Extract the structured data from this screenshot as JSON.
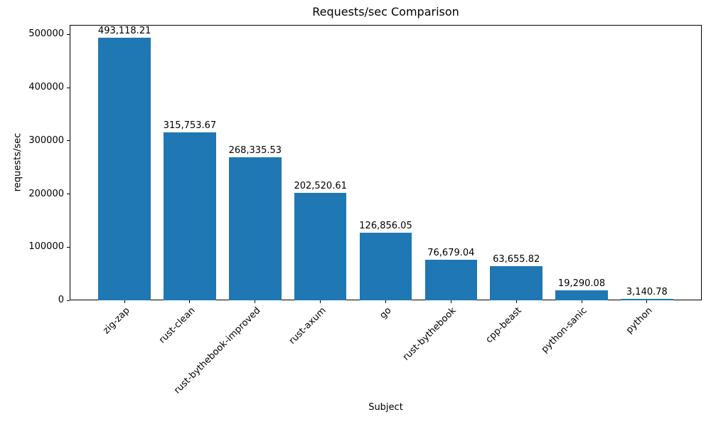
{
  "chart_data": {
    "type": "bar",
    "title": "Requests/sec Comparison",
    "xlabel": "Subject",
    "ylabel": "requests/sec",
    "categories": [
      "zig-zap",
      "rust-clean",
      "rust-bythebook-improved",
      "rust-axum",
      "go",
      "rust-bythebook",
      "cpp-beast",
      "python-sanic",
      "python"
    ],
    "values": [
      493118.21,
      315753.67,
      268335.53,
      202520.61,
      126856.05,
      76679.04,
      63655.82,
      19290.08,
      3140.78
    ],
    "value_labels": [
      "493,118.21",
      "315,753.67",
      "268,335.53",
      "202,520.61",
      "126,856.05",
      "76,679.04",
      "63,655.82",
      "19,290.08",
      "3,140.78"
    ],
    "yticks": [
      0,
      100000,
      200000,
      300000,
      400000,
      500000
    ],
    "ylim": [
      0,
      517774
    ],
    "bar_color": "#1f77b4",
    "spine_color": "#000000",
    "text_color": "#000000",
    "background": "#ffffff",
    "grid": false,
    "legend": null,
    "x_tick_rotation_deg": 45
  }
}
